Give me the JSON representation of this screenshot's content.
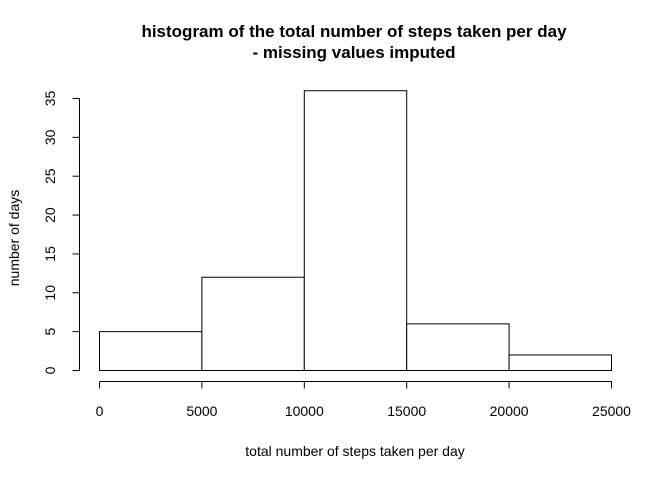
{
  "chart_data": {
    "type": "bar",
    "title_line1": "histogram of the total number of steps taken per day",
    "title_line2": "- missing values imputed",
    "xlabel": "total number of steps taken per day",
    "ylabel": "number of days",
    "bins": [
      {
        "from": 0,
        "to": 5000,
        "count": 5
      },
      {
        "from": 5000,
        "to": 10000,
        "count": 12
      },
      {
        "from": 10000,
        "to": 15000,
        "count": 36
      },
      {
        "from": 15000,
        "to": 20000,
        "count": 6
      },
      {
        "from": 20000,
        "to": 25000,
        "count": 2
      }
    ],
    "xlim": [
      0,
      25000
    ],
    "ylim": [
      0,
      36
    ],
    "xticks": [
      0,
      5000,
      10000,
      15000,
      20000,
      25000
    ],
    "yticks": [
      0,
      5,
      10,
      15,
      20,
      25,
      30,
      35
    ],
    "grid": false,
    "legend": "none"
  }
}
